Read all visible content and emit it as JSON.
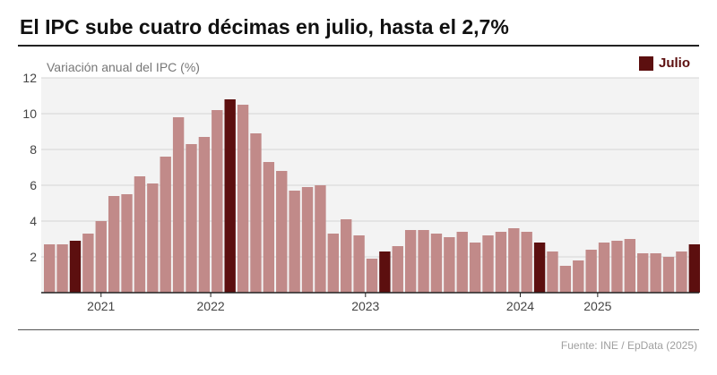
{
  "title": "El IPC sube cuatro décimas en julio, hasta el 2,7%",
  "source": "Fuente: INE / EpData (2025)",
  "legend": {
    "label": "Julio",
    "color": "#5c0f0f"
  },
  "colors": {
    "normal_bar": "#c18a89",
    "highlight_bar": "#5c0f0f",
    "plot_bg": "#f3f3f3",
    "grid": "#d6d6d6"
  },
  "chart_data": {
    "type": "bar",
    "title": "El IPC sube cuatro décimas en julio, hasta el 2,7%",
    "ylabel": "Variación anual del IPC (%)",
    "xlabel": "",
    "ylim": [
      0,
      12
    ],
    "yticks": [
      2,
      4,
      6,
      8,
      10,
      12
    ],
    "grid": true,
    "legend_position": "top-right",
    "x_tick_labels": [
      {
        "label": "2021",
        "index": 4
      },
      {
        "label": "2022",
        "index": 12.5
      },
      {
        "label": "2023",
        "index": 24.5
      },
      {
        "label": "2024",
        "index": 36.5
      },
      {
        "label": "2025",
        "index": 42.5
      }
    ],
    "series": [
      {
        "name": "Variación anual del IPC (%)",
        "values": [
          2.7,
          2.7,
          2.9,
          3.3,
          4.0,
          5.4,
          5.5,
          6.5,
          6.1,
          7.6,
          9.8,
          8.3,
          8.7,
          10.2,
          10.8,
          10.5,
          8.9,
          7.3,
          6.8,
          5.7,
          5.9,
          6.0,
          3.3,
          4.1,
          3.2,
          1.9,
          2.3,
          2.6,
          3.5,
          3.5,
          3.3,
          3.1,
          3.4,
          2.8,
          3.2,
          3.4,
          3.6,
          3.4,
          2.8,
          2.3,
          1.5,
          1.8,
          2.4,
          2.8,
          2.9,
          3.0,
          2.2,
          2.2,
          2.0,
          2.3,
          2.7
        ],
        "highlight_indices": [
          2,
          14,
          26,
          38,
          50
        ]
      }
    ]
  }
}
